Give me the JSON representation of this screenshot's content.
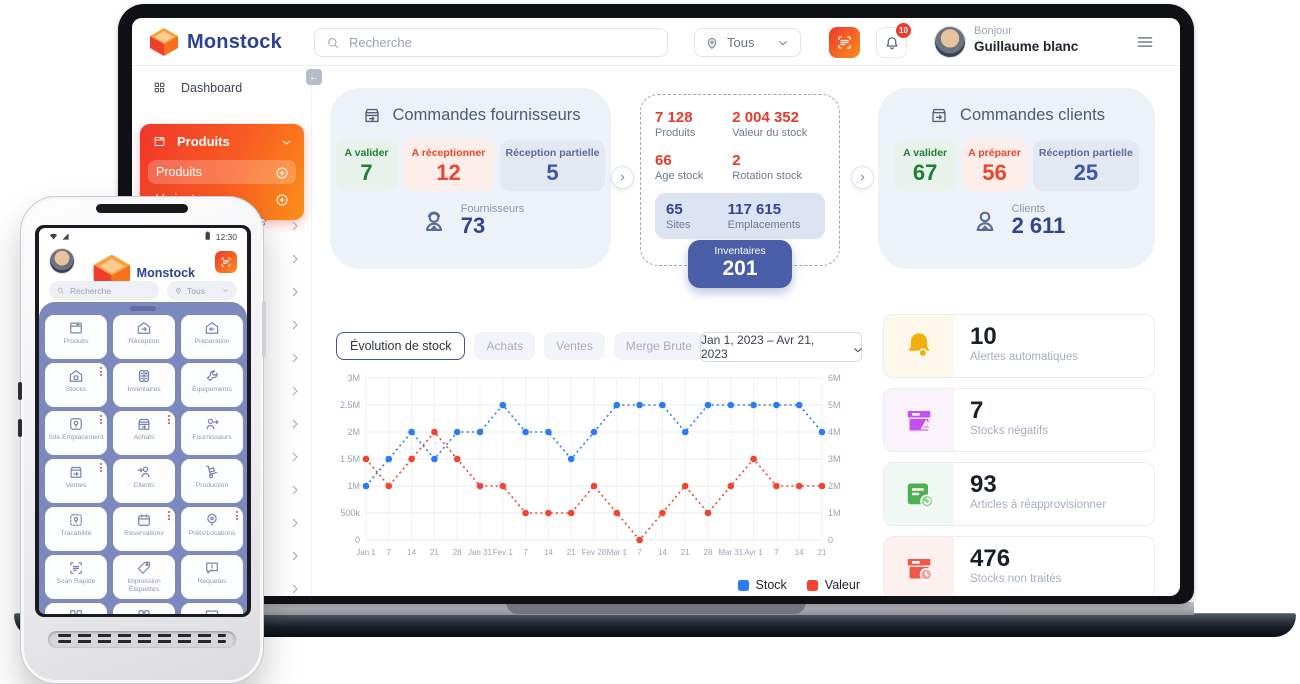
{
  "colors": {
    "brand_blue": "#2d4193",
    "accent_orange_from": "#f0372a",
    "accent_orange_to": "#fa9019",
    "stat_red": "#e43b2c",
    "stat_navy": "#31458e",
    "chip_green_text": "#1e7d36",
    "chip_red_text": "#e8462e",
    "chip_blue_text": "#3d55a5",
    "inventory_button_bg": "#4a5fa7",
    "chart_blue": "#2b7bf5",
    "chart_red": "#f4432e"
  },
  "laptop": {
    "header": {
      "brand": "Monstock",
      "search_placeholder": "Recherche",
      "filter_label": "Tous",
      "notification_count": "10",
      "greeting": "Bonjour",
      "user_name": "Guillaume blanc"
    },
    "sidebar": {
      "dashboard_label": "Dashboard",
      "produits_label": "Produits",
      "sub_items": [
        {
          "label": "Produits",
          "active": true
        },
        {
          "label": "Variantes",
          "active": false
        }
      ],
      "collapsed_chevrons": 13
    },
    "cards": {
      "fournisseurs": {
        "title": "Commandes fournisseurs",
        "icon": "store-icon",
        "chips": [
          {
            "label": "A valider",
            "value": "7",
            "variant": "green"
          },
          {
            "label": "A réceptionner",
            "value": "12",
            "variant": "red"
          },
          {
            "label": "Réception partielle",
            "value": "5",
            "variant": "blue"
          }
        ],
        "footer_icon": "worker-icon",
        "footer_label": "Fournisseurs",
        "footer_value": "73"
      },
      "stats": {
        "items": [
          {
            "value": "7 128",
            "label": "Produits"
          },
          {
            "value": "2 004 352",
            "label": "Valeur du stock"
          },
          {
            "value": "66",
            "label": "Age stock"
          },
          {
            "value": "2",
            "label": "Rotation stock"
          }
        ],
        "box_items": [
          {
            "value": "65",
            "label": "Sites"
          },
          {
            "value": "117 615",
            "label": "Emplacements"
          }
        ],
        "button_label": "Inventaires",
        "button_value": "201"
      },
      "clients": {
        "title": "Commandes clients",
        "icon": "store-arrow-icon",
        "chips": [
          {
            "label": "A valider",
            "value": "67",
            "variant": "green"
          },
          {
            "label": "A préparer",
            "value": "56",
            "variant": "red"
          },
          {
            "label": "Réception partielle",
            "value": "25",
            "variant": "blue"
          }
        ],
        "footer_icon": "client-icon",
        "footer_label": "Clients",
        "footer_value": "2 611"
      }
    },
    "chart_section": {
      "tabs": [
        {
          "label": "Évolution de stock",
          "active": true
        },
        {
          "label": "Achats",
          "active": false
        },
        {
          "label": "Ventes",
          "active": false
        },
        {
          "label": "Merge Brute",
          "active": false
        }
      ],
      "date_range": "Jan 1, 2023 – Avr 21, 2023"
    },
    "alerts": [
      {
        "value": "10",
        "label": "Alertes automatiques",
        "icon": "alert-bell-icon",
        "variant": "yellow"
      },
      {
        "value": "7",
        "label": "Stocks négatifs",
        "icon": "neg-box-icon",
        "variant": "purple"
      },
      {
        "value": "93",
        "label": "Articles à réapprovisionner",
        "icon": "restock-icon",
        "variant": "green"
      },
      {
        "value": "476",
        "label": "Stocks non traités",
        "icon": "untreated-icon",
        "variant": "red"
      }
    ]
  },
  "chart_data": {
    "type": "line",
    "line_style": "dotted",
    "x": [
      "Jan 1",
      "7",
      "14",
      "21",
      "28",
      "Jan 31",
      "Fev 1",
      "7",
      "14",
      "21",
      "Fev 28",
      "Mar 1",
      "7",
      "14",
      "21",
      "28",
      "Mar 31",
      "Avr 1",
      "7",
      "14",
      "21"
    ],
    "series": [
      {
        "name": "Stock",
        "color": "#2b7bf5",
        "values": [
          1000000,
          1500000,
          2000000,
          1500000,
          2000000,
          2000000,
          2500000,
          2000000,
          2000000,
          1500000,
          2000000,
          2500000,
          2500000,
          2500000,
          2000000,
          2500000,
          2500000,
          2500000,
          2500000,
          2500000,
          2000000
        ]
      },
      {
        "name": "Valeur",
        "color": "#f4432e",
        "values": [
          1500000,
          1000000,
          1500000,
          2000000,
          1500000,
          1000000,
          1000000,
          500000,
          500000,
          500000,
          1000000,
          500000,
          0,
          500000,
          1000000,
          500000,
          1000000,
          1500000,
          1000000,
          1000000,
          1000000
        ]
      }
    ],
    "y_left_ticks": [
      "0",
      "500k",
      "1M",
      "1.5M",
      "2M",
      "2.5M",
      "3M"
    ],
    "y_right_ticks": [
      "0",
      "1M",
      "2M",
      "3M",
      "4M",
      "5M",
      "6M"
    ],
    "y_left_range": [
      0,
      3000000
    ],
    "y_right_range": [
      0,
      6000000
    ],
    "grid": true,
    "legend_position": "bottom-right",
    "legend": [
      "Stock",
      "Valeur"
    ]
  },
  "mobile": {
    "status": {
      "time": "12:30"
    },
    "brand": "Monstock",
    "search_placeholder": "Recherche",
    "filter_label": "Tous",
    "tiles": [
      {
        "label": "Produits",
        "icon": "box-icon",
        "badge": false
      },
      {
        "label": "Réception",
        "icon": "house-in-icon",
        "badge": false
      },
      {
        "label": "Préparation",
        "icon": "house-out-icon",
        "badge": false
      },
      {
        "label": "Stocks",
        "icon": "warehouse-icon",
        "badge": true
      },
      {
        "label": "Inventaires",
        "icon": "calculator-icon",
        "badge": false
      },
      {
        "label": "Équipements",
        "icon": "wrench-icon",
        "badge": false
      },
      {
        "label": "Site Emplacement",
        "icon": "site-pin-icon",
        "badge": true
      },
      {
        "label": "Achats",
        "icon": "store-icon",
        "badge": true
      },
      {
        "label": "Fournisseurs",
        "icon": "person-arrow-icon",
        "badge": false
      },
      {
        "label": "Ventes",
        "icon": "store-arrow-icon",
        "badge": true
      },
      {
        "label": "Clients",
        "icon": "person-in-icon",
        "badge": false
      },
      {
        "label": "Production",
        "icon": "handtruck-icon",
        "badge": false
      },
      {
        "label": "Tracabilité",
        "icon": "trace-pin-icon",
        "badge": false
      },
      {
        "label": "Réservations",
        "icon": "calendar-icon",
        "badge": true
      },
      {
        "label": "Prêts/Locations",
        "icon": "pin-circle-icon",
        "badge": true
      },
      {
        "label": "Scan Rapide",
        "icon": "scan-icon",
        "badge": false
      },
      {
        "label": "Impression Étiquettes",
        "icon": "tag-icon",
        "badge": false
      },
      {
        "label": "Requetes",
        "icon": "chat-alert-icon",
        "badge": false
      },
      {
        "label": "",
        "icon": "grid-icon",
        "badge": false
      },
      {
        "label": "",
        "icon": "doors-icon",
        "badge": false
      },
      {
        "label": "",
        "icon": "presentation-icon",
        "badge": false
      }
    ]
  }
}
